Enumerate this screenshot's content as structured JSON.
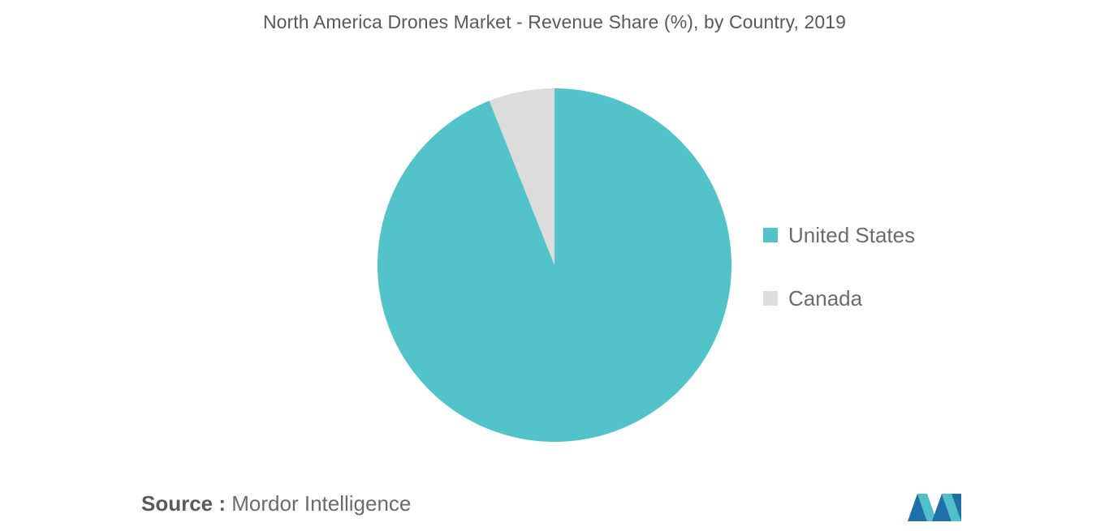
{
  "chart_data": {
    "type": "pie",
    "title": "North America Drones Market - Revenue Share (%), by Country, 2019",
    "slices": [
      {
        "name": "United States",
        "value": 94,
        "color": "#52c3c9"
      },
      {
        "name": "Canada",
        "value": 6,
        "color": "#dcdcdc"
      }
    ],
    "start_angle_deg": 0,
    "direction": "clockwise",
    "legend_position": "right",
    "data_labels": false
  },
  "source": {
    "prefix": "Source :",
    "text": "Mordor Intelligence"
  },
  "logo": {
    "icon": "mordor-intelligence-logo",
    "colors": [
      "#1f6fa8",
      "#4fc0c8"
    ]
  }
}
